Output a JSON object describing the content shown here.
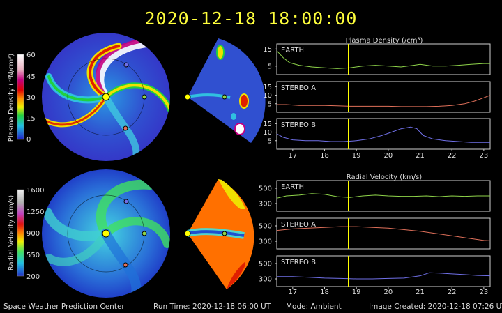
{
  "header": {
    "timestamp": "2020-12-18  18:00:00"
  },
  "footer": {
    "org": "Space Weather Prediction Center",
    "run_time": "Run Time: 2020-12-18 06:00 UT",
    "mode": "Mode: Ambient",
    "image_created": "Image Created: 2020-12-18 07:26 UT"
  },
  "colorbars": [
    {
      "label": "Plasma Density (r²N/cm³)",
      "ticks": [
        "60",
        "45",
        "30",
        "15",
        "0"
      ]
    },
    {
      "label": "Radial Velocity (km/s)",
      "ticks": [
        "1600",
        "1250",
        "900",
        "550",
        "200"
      ]
    }
  ],
  "colors": {
    "background": "#000000",
    "timestamp": "#ffff3c",
    "earth": "#8fd44a",
    "stereo_a": "#e0705a",
    "stereo_b": "#7070e8",
    "cursor": "#ffff00"
  },
  "chart_data": [
    {
      "type": "line",
      "title": "Plasma Density (/cm³)",
      "xlim": [
        16.5,
        23.2
      ],
      "x_ticks": [
        "17",
        "18",
        "19",
        "20",
        "21",
        "22",
        "23"
      ],
      "current_time_marker": 18.75,
      "panels": [
        {
          "name": "EARTH",
          "color": "#8fd44a",
          "ylim": [
            0,
            18
          ],
          "y_ticks": [
            "15",
            "5"
          ],
          "y_tick_values": [
            15,
            5
          ],
          "x": [
            16.5,
            16.7,
            16.9,
            17.2,
            17.6,
            18.0,
            18.4,
            18.8,
            19.2,
            19.6,
            20.0,
            20.4,
            20.8,
            21.0,
            21.4,
            21.8,
            22.2,
            22.6,
            23.0,
            23.2
          ],
          "y": [
            14,
            10,
            7,
            5.5,
            4.5,
            4,
            3.5,
            4,
            5,
            5.5,
            5,
            4.5,
            5.5,
            6,
            5,
            5,
            5.5,
            6,
            6.5,
            6.5
          ]
        },
        {
          "name": "STEREO A",
          "color": "#e0705a",
          "ylim": [
            0,
            18
          ],
          "y_ticks": [
            "15",
            "10",
            "5"
          ],
          "y_tick_values": [
            15,
            10,
            5
          ],
          "x": [
            16.5,
            16.8,
            17.2,
            17.6,
            18.0,
            18.4,
            18.8,
            19.2,
            19.6,
            20.0,
            20.4,
            20.8,
            21.2,
            21.6,
            22.0,
            22.4,
            22.7,
            23.0,
            23.2
          ],
          "y": [
            4.5,
            4.5,
            4,
            4,
            4,
            3.8,
            3.5,
            3.5,
            3.5,
            3.5,
            3.3,
            3.3,
            3.3,
            3.5,
            4,
            5,
            6.5,
            8.5,
            10
          ]
        },
        {
          "name": "STEREO B",
          "color": "#7070e8",
          "ylim": [
            0,
            18
          ],
          "y_ticks": [
            "15",
            "10",
            "5"
          ],
          "y_tick_values": [
            15,
            10,
            5
          ],
          "x": [
            16.5,
            16.7,
            17.0,
            17.4,
            17.8,
            18.2,
            18.6,
            19.0,
            19.4,
            19.8,
            20.1,
            20.4,
            20.7,
            20.9,
            21.1,
            21.4,
            21.8,
            22.2,
            22.6,
            23.0,
            23.2
          ],
          "y": [
            9,
            7,
            5.5,
            5,
            5,
            4.5,
            4.5,
            5,
            6,
            8,
            10,
            12,
            13,
            12,
            8,
            6,
            5,
            4.5,
            4,
            4,
            4
          ]
        }
      ]
    },
    {
      "type": "line",
      "title": "Radial Velocity (km/s)",
      "xlim": [
        16.5,
        23.2
      ],
      "x_ticks": [
        "17",
        "18",
        "19",
        "20",
        "21",
        "22",
        "23"
      ],
      "current_time_marker": 18.75,
      "panels": [
        {
          "name": "EARTH",
          "color": "#8fd44a",
          "ylim": [
            200,
            600
          ],
          "y_ticks": [
            "500",
            "300"
          ],
          "y_tick_values": [
            500,
            300
          ],
          "x": [
            16.5,
            16.8,
            17.2,
            17.6,
            18.0,
            18.4,
            18.8,
            19.2,
            19.6,
            20.0,
            20.4,
            20.8,
            21.2,
            21.6,
            22.0,
            22.4,
            22.8,
            23.2
          ],
          "y": [
            370,
            400,
            410,
            430,
            420,
            390,
            380,
            400,
            410,
            400,
            395,
            395,
            400,
            390,
            400,
            395,
            400,
            400
          ]
        },
        {
          "name": "STEREO A",
          "color": "#e0705a",
          "ylim": [
            200,
            600
          ],
          "y_ticks": [
            "500",
            "300"
          ],
          "y_tick_values": [
            500,
            300
          ],
          "x": [
            16.5,
            17.0,
            17.5,
            18.0,
            18.5,
            19.0,
            19.5,
            20.0,
            20.5,
            21.0,
            21.5,
            22.0,
            22.5,
            23.0,
            23.2
          ],
          "y": [
            440,
            460,
            470,
            480,
            490,
            490,
            480,
            470,
            450,
            430,
            400,
            370,
            340,
            310,
            305
          ]
        },
        {
          "name": "STEREO B",
          "color": "#7070e8",
          "ylim": [
            200,
            600
          ],
          "y_ticks": [
            "500",
            "300"
          ],
          "y_tick_values": [
            500,
            300
          ],
          "x": [
            16.5,
            17.0,
            17.5,
            18.0,
            18.5,
            19.0,
            19.5,
            20.0,
            20.5,
            21.0,
            21.3,
            21.6,
            22.0,
            22.4,
            22.8,
            23.2
          ],
          "y": [
            330,
            330,
            320,
            310,
            305,
            300,
            300,
            305,
            310,
            340,
            380,
            375,
            365,
            355,
            345,
            340
          ]
        }
      ]
    }
  ]
}
